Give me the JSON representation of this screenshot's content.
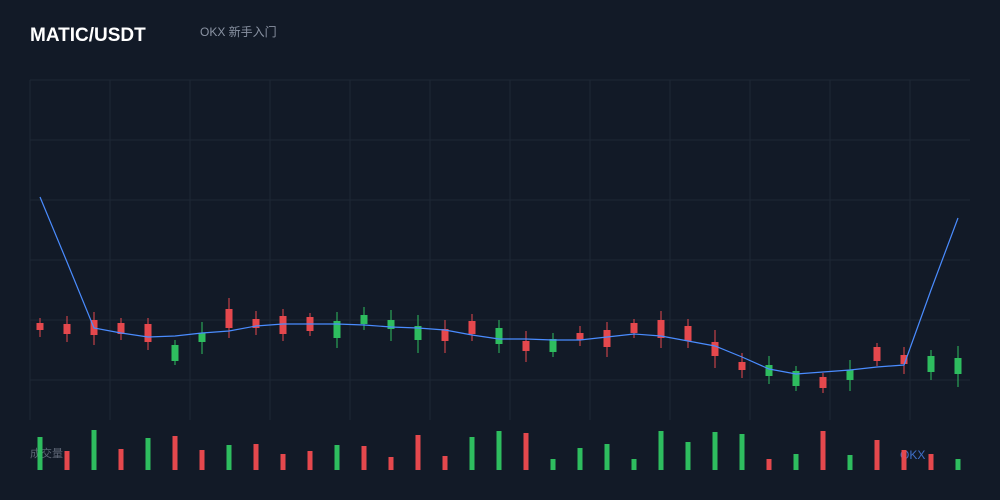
{
  "header": {
    "title": "MATIC/USDT",
    "link": "OKX 新手入门"
  },
  "watermark": "OKX",
  "chart_data": {
    "type": "candlestick",
    "ylim": [
      0,
      340
    ],
    "up_color": "#2ebd5f",
    "down_color": "#e5484d",
    "open": [
      97,
      96,
      100,
      97,
      96,
      59,
      78,
      111,
      101,
      104,
      103,
      82,
      96,
      91,
      80,
      91,
      99,
      76,
      79,
      68,
      87,
      90,
      97,
      100,
      94,
      78,
      58,
      44,
      34,
      43,
      40,
      73,
      65,
      48,
      46
    ],
    "high": [
      102,
      104,
      108,
      102,
      102,
      80,
      98,
      122,
      109,
      111,
      107,
      108,
      113,
      110,
      105,
      100,
      106,
      100,
      89,
      87,
      94,
      98,
      101,
      109,
      101,
      90,
      67,
      64,
      54,
      47,
      60,
      77,
      73,
      70,
      74
    ],
    "low": [
      83,
      78,
      75,
      80,
      70,
      55,
      66,
      82,
      85,
      79,
      84,
      72,
      90,
      79,
      67,
      67,
      79,
      67,
      58,
      63,
      74,
      63,
      82,
      72,
      72,
      52,
      42,
      36,
      29,
      27,
      29,
      54,
      46,
      40,
      33
    ],
    "close": [
      90,
      86,
      85,
      86,
      78,
      75,
      87,
      92,
      92,
      86,
      89,
      99,
      105,
      100,
      94,
      79,
      86,
      92,
      69,
      81,
      80,
      73,
      87,
      82,
      79,
      64,
      50,
      55,
      49,
      32,
      50,
      59,
      56,
      64,
      62
    ],
    "ma": {
      "color": "#4a8cff",
      "values": [
        223,
        158,
        92,
        87,
        83,
        84,
        87,
        89,
        94,
        96,
        96,
        96,
        95,
        93,
        92,
        90,
        85,
        81,
        81,
        80,
        80,
        83,
        86,
        84,
        79,
        74,
        63,
        51,
        46,
        48,
        50,
        53,
        55,
        130,
        202
      ]
    },
    "volume": {
      "label": "成交量",
      "vlim": [
        0,
        50
      ],
      "values": [
        33,
        19,
        40,
        21,
        32,
        34,
        20,
        25,
        26,
        16,
        19,
        25,
        24,
        13,
        35,
        14,
        33,
        39,
        37,
        11,
        22,
        26,
        11,
        39,
        28,
        38,
        36,
        11,
        16,
        39,
        15,
        30,
        20,
        16,
        11
      ],
      "colors": [
        "#2ebd5f",
        "#e5484d",
        "#2ebd5f",
        "#e5484d",
        "#2ebd5f",
        "#e5484d",
        "#e5484d",
        "#2ebd5f",
        "#e5484d",
        "#e5484d",
        "#e5484d",
        "#2ebd5f",
        "#e5484d",
        "#e5484d",
        "#e5484d",
        "#e5484d",
        "#2ebd5f",
        "#2ebd5f",
        "#e5484d",
        "#2ebd5f",
        "#2ebd5f",
        "#2ebd5f",
        "#2ebd5f",
        "#2ebd5f",
        "#2ebd5f",
        "#2ebd5f",
        "#2ebd5f",
        "#e5484d",
        "#2ebd5f",
        "#e5484d",
        "#2ebd5f",
        "#e5484d",
        "#e5484d",
        "#e5484d",
        "#2ebd5f"
      ]
    }
  }
}
